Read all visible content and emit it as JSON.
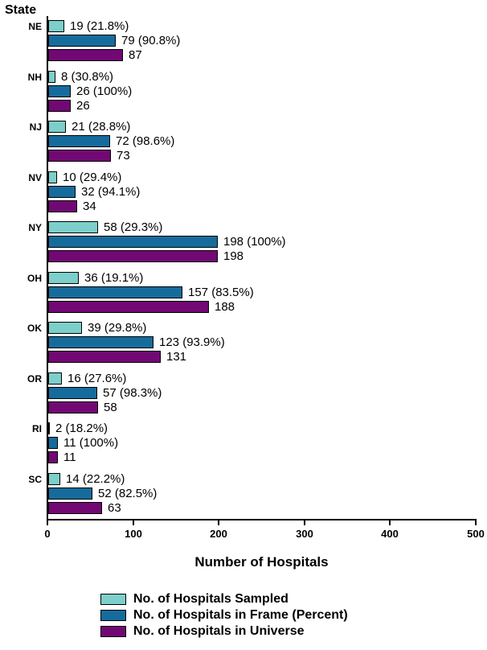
{
  "chart_data": {
    "type": "bar",
    "orientation": "horizontal",
    "ylabel": "State",
    "xlabel": "Number of Hospitals",
    "xlim": [
      0,
      500
    ],
    "x_ticks": [
      0,
      100,
      200,
      300,
      400,
      500
    ],
    "grid": false,
    "legend_position": "bottom-left",
    "categories": [
      "NE",
      "NH",
      "NJ",
      "NV",
      "NY",
      "OH",
      "OK",
      "OR",
      "RI",
      "SC"
    ],
    "series": [
      {
        "name": "No. of Hospitals Sampled",
        "color": "#7CCFCB",
        "values": [
          19,
          8,
          21,
          10,
          58,
          36,
          39,
          16,
          2,
          14
        ],
        "bar_labels": [
          "19 (21.8%)",
          "8 (30.8%)",
          "21 (28.8%)",
          "10 (29.4%)",
          "58 (29.3%)",
          "36 (19.1%)",
          "39 (29.8%)",
          "16 (27.6%)",
          "2 (18.2%)",
          "14 (22.2%)"
        ]
      },
      {
        "name": "No. of Hospitals in Frame (Percent)",
        "color": "#156C9C",
        "values": [
          79,
          26,
          72,
          32,
          198,
          157,
          123,
          57,
          11,
          52
        ],
        "bar_labels": [
          "79 (90.8%)",
          "26 (100%)",
          "72 (98.6%)",
          "32 (94.1%)",
          "198 (100%)",
          "157 (83.5%)",
          "123 (93.9%)",
          "57 (98.3%)",
          "11 (100%)",
          "52 (82.5%)"
        ]
      },
      {
        "name": "No. of Hospitals in Universe",
        "color": "#720874",
        "values": [
          87,
          26,
          73,
          34,
          198,
          188,
          131,
          58,
          11,
          63
        ],
        "bar_labels": [
          "87",
          "26",
          "73",
          "34",
          "198",
          "188",
          "131",
          "58",
          "11",
          "63"
        ]
      }
    ]
  },
  "colors": {
    "axis": "#000000",
    "text": "#000000",
    "background": "#ffffff"
  }
}
